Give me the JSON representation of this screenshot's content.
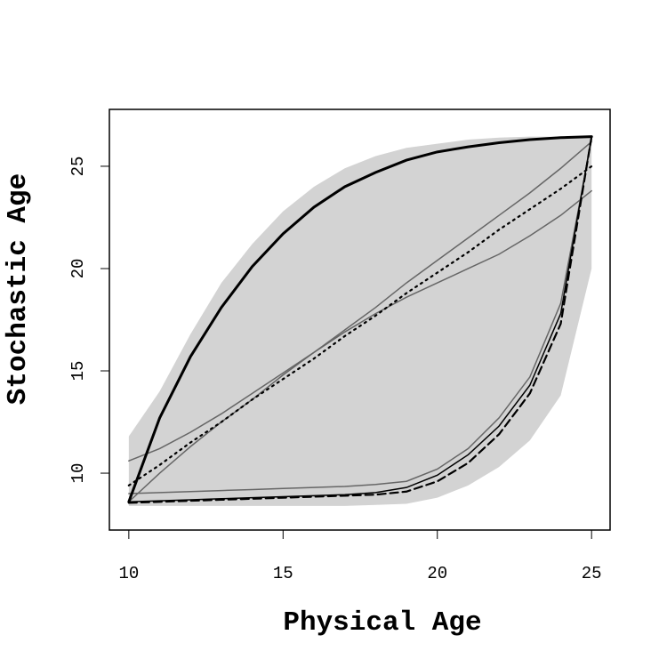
{
  "chart_data": {
    "type": "line",
    "x_label": "Physical Age",
    "y_label": "Stochastic Age",
    "x": [
      10,
      11,
      12,
      13,
      14,
      15,
      16,
      17,
      18,
      19,
      20,
      21,
      22,
      23,
      24,
      25
    ],
    "band": {
      "color": "#d3d3d3",
      "upper": [
        11.8,
        14.0,
        16.8,
        19.3,
        21.2,
        22.8,
        24.0,
        24.9,
        25.5,
        25.9,
        26.1,
        26.3,
        26.4,
        26.45,
        26.45,
        26.45
      ],
      "lower": [
        8.4,
        8.4,
        8.4,
        8.4,
        8.4,
        8.4,
        8.4,
        8.4,
        8.45,
        8.5,
        8.8,
        9.4,
        10.3,
        11.6,
        13.8,
        20.0
      ]
    },
    "series": [
      {
        "color": "#666666",
        "style": "solid",
        "width": 1.5,
        "values": [
          10.6,
          11.2,
          12.0,
          12.9,
          13.9,
          14.9,
          15.9,
          16.9,
          17.8,
          18.6,
          19.3,
          20.0,
          20.7,
          21.6,
          22.6,
          23.8
        ]
      },
      {
        "color": "#666666",
        "style": "solid",
        "width": 1.5,
        "values": [
          8.6,
          10.0,
          11.3,
          12.5,
          13.6,
          14.8,
          15.9,
          17.0,
          18.1,
          19.3,
          20.4,
          21.5,
          22.6,
          23.7,
          24.9,
          26.2
        ]
      },
      {
        "color": "#666666",
        "style": "solid",
        "width": 1.5,
        "values": [
          9.0,
          9.05,
          9.1,
          9.15,
          9.2,
          9.25,
          9.3,
          9.35,
          9.45,
          9.6,
          10.2,
          11.2,
          12.7,
          14.7,
          18.3,
          26.3
        ]
      },
      {
        "color": "#000000",
        "style": "dotted",
        "width": 2.2,
        "values": [
          9.4,
          10.4,
          11.5,
          12.5,
          13.6,
          14.6,
          15.6,
          16.7,
          17.7,
          18.8,
          19.8,
          20.8,
          21.9,
          22.9,
          23.9,
          25.0
        ]
      },
      {
        "color": "#000000",
        "style": "dashed",
        "width": 2.2,
        "values": [
          8.55,
          8.6,
          8.65,
          8.7,
          8.75,
          8.8,
          8.85,
          8.9,
          8.95,
          9.1,
          9.6,
          10.5,
          11.9,
          13.9,
          17.3,
          26.45
        ]
      },
      {
        "color": "#000000",
        "style": "solid",
        "width": 1.5,
        "values": [
          8.6,
          8.65,
          8.7,
          8.75,
          8.8,
          8.85,
          8.9,
          8.95,
          9.05,
          9.3,
          9.9,
          10.9,
          12.3,
          14.3,
          17.8,
          26.45
        ]
      },
      {
        "color": "#000000",
        "style": "solid",
        "width": 3,
        "values": [
          8.6,
          12.7,
          15.7,
          18.1,
          20.1,
          21.7,
          23.0,
          24.0,
          24.7,
          25.3,
          25.7,
          25.95,
          26.15,
          26.3,
          26.4,
          26.45
        ]
      }
    ],
    "xlim": [
      9.37,
      25.6
    ],
    "ylim": [
      7.22,
      27.78
    ],
    "xticks": [
      10,
      15,
      20,
      25
    ],
    "yticks": [
      10,
      15,
      20,
      25
    ]
  }
}
